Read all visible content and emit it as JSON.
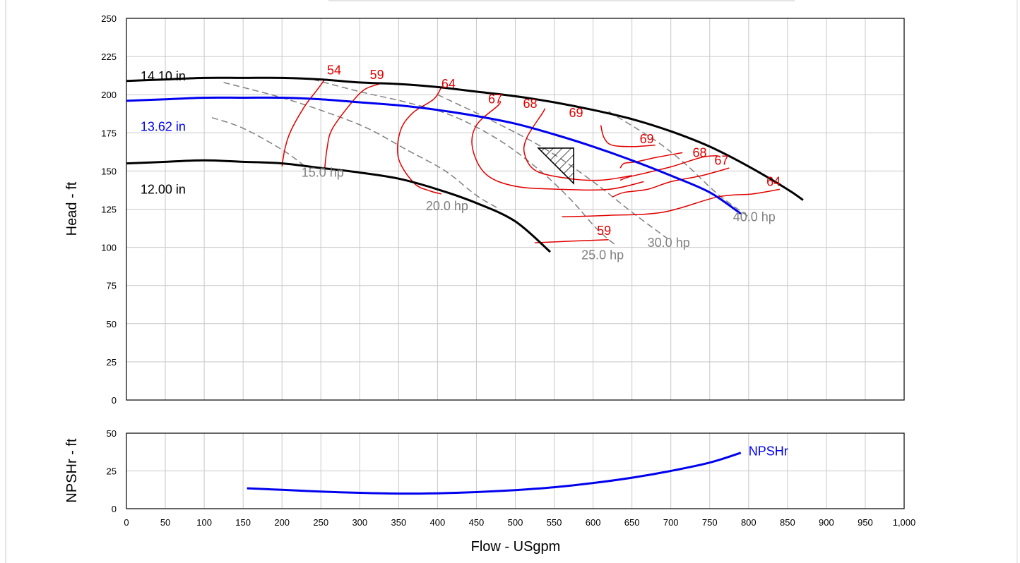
{
  "head_chart": {
    "type": "line",
    "xlabel": "Flow - USgpm",
    "ylabel": "Head - ft",
    "xlim": [
      0,
      1000
    ],
    "ylim": [
      0,
      250
    ],
    "x_ticks": [
      0,
      50,
      100,
      150,
      200,
      250,
      300,
      350,
      400,
      450,
      500,
      550,
      600,
      650,
      700,
      750,
      800,
      850,
      900,
      950,
      1000
    ],
    "x_tick_labels": [
      "0",
      "50",
      "100",
      "150",
      "200",
      "250",
      "300",
      "350",
      "400",
      "450",
      "500",
      "550",
      "600",
      "650",
      "700",
      "750",
      "800",
      "850",
      "900",
      "950",
      "1,000"
    ],
    "y_ticks": [
      0,
      25,
      50,
      75,
      100,
      125,
      150,
      175,
      200,
      225,
      250
    ],
    "y_tick_labels": [
      "0",
      "25",
      "50",
      "75",
      "100",
      "125",
      "150",
      "175",
      "200",
      "225",
      "250"
    ],
    "grid": true,
    "impeller_curves": [
      {
        "label": "14.10 in",
        "color": "#000000",
        "label_at": [
          18,
          212
        ],
        "points": [
          [
            0,
            209
          ],
          [
            50,
            210
          ],
          [
            100,
            211
          ],
          [
            150,
            211
          ],
          [
            200,
            211
          ],
          [
            250,
            210
          ],
          [
            300,
            208
          ],
          [
            350,
            207
          ],
          [
            400,
            205
          ],
          [
            450,
            202
          ],
          [
            500,
            199
          ],
          [
            550,
            195
          ],
          [
            600,
            190
          ],
          [
            650,
            184
          ],
          [
            700,
            176
          ],
          [
            750,
            166
          ],
          [
            800,
            153
          ],
          [
            850,
            138
          ],
          [
            870,
            131
          ]
        ]
      },
      {
        "label": "13.62 in",
        "color": "#0000ee",
        "label_at": [
          18,
          179
        ],
        "points": [
          [
            0,
            196
          ],
          [
            50,
            197
          ],
          [
            100,
            198
          ],
          [
            150,
            198
          ],
          [
            200,
            198
          ],
          [
            250,
            197
          ],
          [
            300,
            195
          ],
          [
            350,
            193
          ],
          [
            400,
            190
          ],
          [
            450,
            186
          ],
          [
            500,
            181
          ],
          [
            550,
            174
          ],
          [
            600,
            166
          ],
          [
            650,
            157
          ],
          [
            700,
            147
          ],
          [
            750,
            136
          ],
          [
            790,
            122
          ]
        ]
      },
      {
        "label": "12.00 in",
        "color": "#000000",
        "label_at": [
          18,
          138
        ],
        "points": [
          [
            0,
            155
          ],
          [
            50,
            156
          ],
          [
            100,
            157
          ],
          [
            150,
            156
          ],
          [
            200,
            155
          ],
          [
            250,
            152
          ],
          [
            300,
            149
          ],
          [
            350,
            145
          ],
          [
            400,
            138
          ],
          [
            450,
            129
          ],
          [
            500,
            117
          ],
          [
            545,
            97
          ]
        ]
      }
    ],
    "efficiency_contours": [
      {
        "label": "54",
        "color": "#e00000",
        "label_at": [
          258,
          216
        ],
        "points": [
          [
            200,
            153
          ],
          [
            204,
            165
          ],
          [
            212,
            177
          ],
          [
            230,
            193
          ],
          [
            245,
            203
          ],
          [
            255,
            210
          ]
        ]
      },
      {
        "label": "59",
        "color": "#e00000",
        "label_at": [
          313,
          213
        ],
        "points": [
          [
            255,
            152
          ],
          [
            258,
            165
          ],
          [
            264,
            177
          ],
          [
            285,
            192
          ],
          [
            305,
            203
          ],
          [
            325,
            207
          ]
        ]
      },
      {
        "label": "64",
        "color": "#e00000",
        "label_at": [
          405,
          207
        ],
        "points": [
          [
            405,
            135
          ],
          [
            390,
            137
          ],
          [
            370,
            142
          ],
          [
            350,
            158
          ],
          [
            352,
            176
          ],
          [
            368,
            188
          ],
          [
            395,
            197
          ],
          [
            405,
            205
          ]
        ]
      },
      {
        "label": "67",
        "color": "#e00000",
        "label_at": [
          465,
          197
        ],
        "points": [
          [
            665,
            143
          ],
          [
            620,
            138
          ],
          [
            560,
            138
          ],
          [
            500,
            140
          ],
          [
            462,
            148
          ],
          [
            445,
            165
          ],
          [
            450,
            180
          ],
          [
            478,
            193
          ],
          [
            480,
            196
          ]
        ]
      },
      {
        "label": "68",
        "color": "#e00000",
        "label_at": [
          510,
          194
        ],
        "points": [
          [
            650,
            147
          ],
          [
            610,
            144
          ],
          [
            570,
            145
          ],
          [
            527,
            150
          ],
          [
            512,
            161
          ],
          [
            515,
            172
          ],
          [
            535,
            188
          ],
          [
            538,
            191
          ]
        ]
      },
      {
        "label": "69",
        "color": "#e00000",
        "label_at": [
          569,
          188
        ],
        "points": [
          [
            610,
            180
          ],
          [
            614,
            172
          ],
          [
            624,
            167
          ],
          [
            650,
            166
          ],
          [
            680,
            167
          ]
        ]
      },
      {
        "label": "69",
        "color": "#e00000",
        "label_at": [
          660,
          171
        ],
        "points": [
          [
            635,
            152
          ],
          [
            640,
            155
          ],
          [
            655,
            156
          ],
          [
            682,
            159
          ],
          [
            715,
            162
          ]
        ]
      },
      {
        "label": "68",
        "color": "#e00000",
        "label_at": [
          728,
          162
        ],
        "points": [
          [
            635,
            144
          ],
          [
            645,
            146
          ],
          [
            670,
            149
          ],
          [
            702,
            153
          ],
          [
            740,
            159
          ],
          [
            760,
            160
          ]
        ]
      },
      {
        "label": "67",
        "color": "#e00000",
        "label_at": [
          756,
          157
        ],
        "points": [
          [
            625,
            133
          ],
          [
            640,
            136
          ],
          [
            670,
            138
          ],
          [
            700,
            143
          ],
          [
            740,
            147
          ],
          [
            775,
            152
          ]
        ]
      },
      {
        "label": "64",
        "color": "#e00000",
        "label_at": [
          823,
          143
        ],
        "points": [
          [
            560,
            120
          ],
          [
            620,
            121
          ],
          [
            690,
            123
          ],
          [
            760,
            133
          ],
          [
            805,
            135
          ],
          [
            840,
            138
          ]
        ]
      },
      {
        "label": "59",
        "color": "#e00000",
        "label_at": [
          605,
          111
        ],
        "points": [
          [
            525,
            103
          ],
          [
            570,
            104
          ],
          [
            620,
            105
          ]
        ]
      }
    ],
    "power_lines": [
      {
        "label": "15.0 hp",
        "color": "#808080",
        "label_at": [
          225,
          149
        ],
        "points": [
          [
            110,
            185
          ],
          [
            150,
            178
          ],
          [
            200,
            164
          ],
          [
            230,
            153
          ]
        ]
      },
      {
        "label": "20.0 hp",
        "color": "#808080",
        "label_at": [
          385,
          127
        ],
        "points": [
          [
            125,
            208
          ],
          [
            200,
            198
          ],
          [
            260,
            188
          ],
          [
            310,
            178
          ],
          [
            360,
            164
          ],
          [
            410,
            150
          ],
          [
            450,
            134
          ],
          [
            480,
            125
          ]
        ]
      },
      {
        "label": "25.0 hp",
        "color": "#808080",
        "label_at": [
          585,
          95
        ],
        "points": [
          [
            240,
            210
          ],
          [
            300,
            202
          ],
          [
            360,
            195
          ],
          [
            420,
            186
          ],
          [
            480,
            170
          ],
          [
            530,
            151
          ],
          [
            570,
            132
          ],
          [
            605,
            112
          ],
          [
            630,
            101
          ]
        ]
      },
      {
        "label": "30.0 hp",
        "color": "#808080",
        "label_at": [
          670,
          103
        ],
        "points": [
          [
            400,
            200
          ],
          [
            470,
            183
          ],
          [
            540,
            164
          ],
          [
            600,
            143
          ],
          [
            650,
            123
          ],
          [
            695,
            106
          ]
        ]
      },
      {
        "label": "40.0 hp",
        "color": "#808080",
        "label_at": [
          780,
          120
        ],
        "points": [
          [
            620,
            189
          ],
          [
            680,
            170
          ],
          [
            720,
            154
          ],
          [
            760,
            135
          ],
          [
            800,
            120
          ]
        ]
      }
    ],
    "duty_point": {
      "flow": 575,
      "head": 165
    }
  },
  "npshr_chart": {
    "type": "line",
    "xlabel": "Flow - USgpm",
    "ylabel": "NPSHr - ft",
    "xlim": [
      0,
      1000
    ],
    "ylim": [
      0,
      50
    ],
    "y_ticks": [
      0,
      25,
      50
    ],
    "y_tick_labels": [
      "0",
      "25",
      "50"
    ],
    "grid": true,
    "curve": {
      "label": "NPSHr",
      "color": "#0000ee",
      "label_at": [
        800,
        38
      ],
      "points": [
        [
          155,
          13.5
        ],
        [
          200,
          12.5
        ],
        [
          250,
          11.3
        ],
        [
          300,
          10.5
        ],
        [
          350,
          10
        ],
        [
          400,
          10.2
        ],
        [
          450,
          11
        ],
        [
          500,
          12.3
        ],
        [
          550,
          14.2
        ],
        [
          600,
          17
        ],
        [
          650,
          20.5
        ],
        [
          700,
          25
        ],
        [
          750,
          30.5
        ],
        [
          790,
          37
        ]
      ]
    }
  }
}
